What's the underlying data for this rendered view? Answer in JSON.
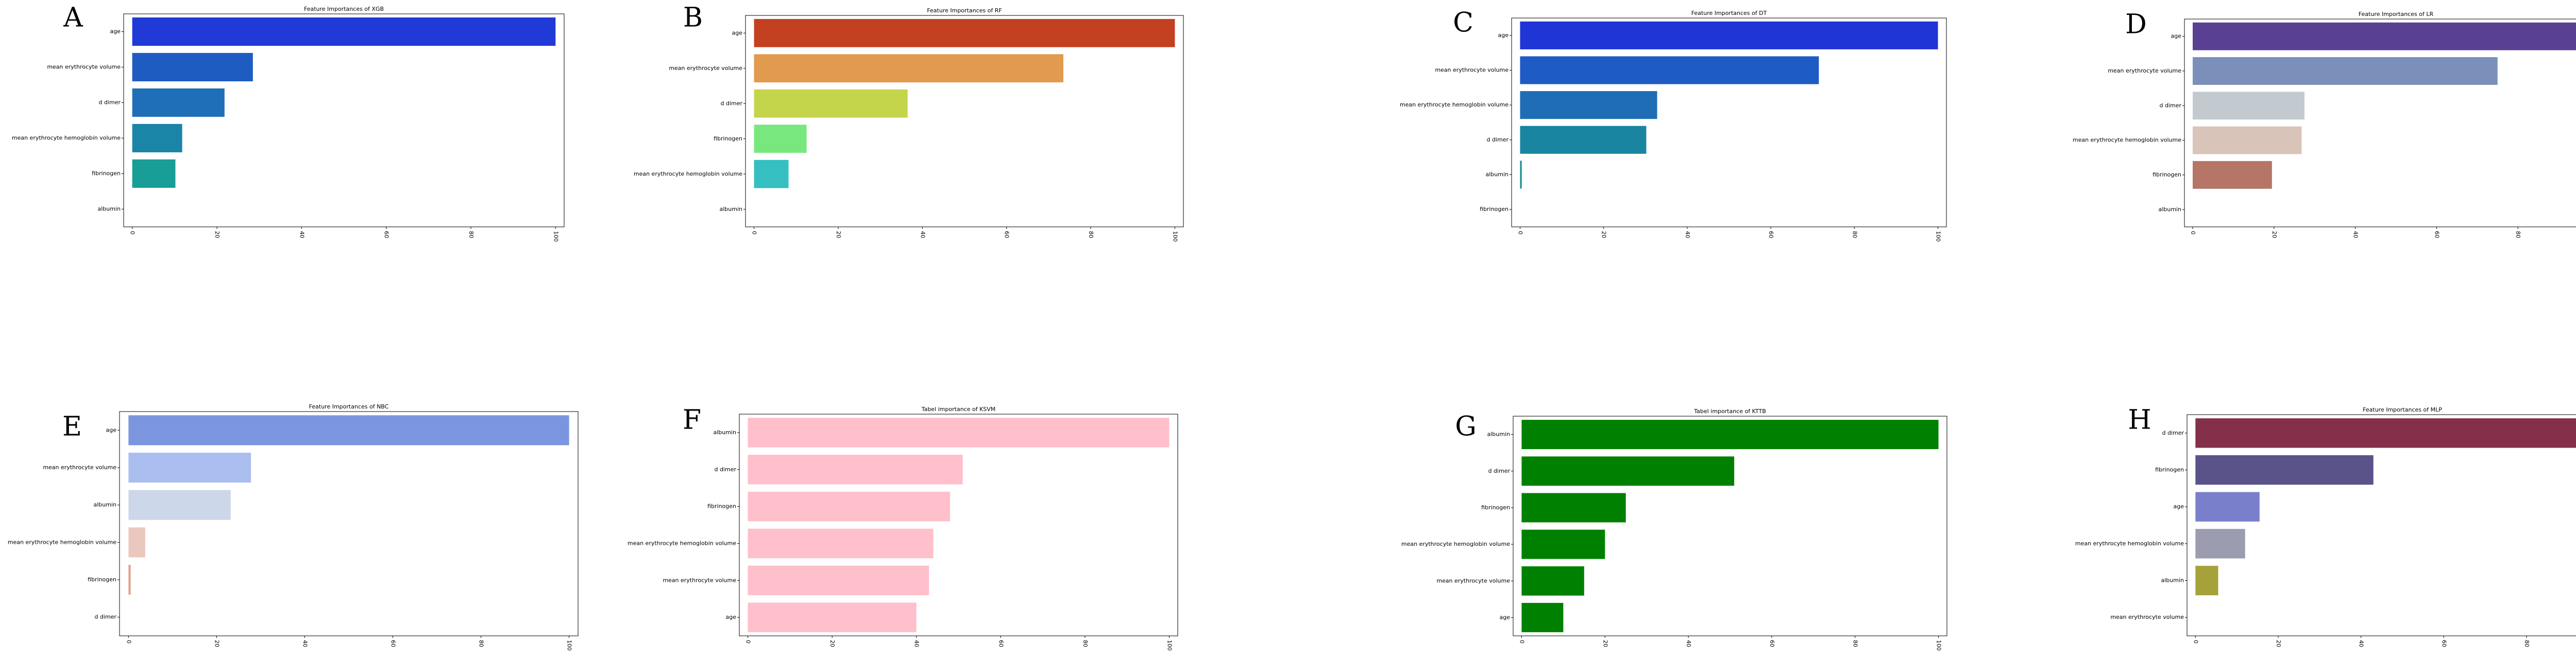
{
  "chart_data": [
    {
      "panel_label": "A",
      "type": "bar",
      "orientation": "horizontal",
      "title": "Feature Importances of XGB",
      "categories": [
        "age",
        "mean erythrocyte volume",
        "d dimer",
        "mean erythrocyte hemoglobin volume",
        "fibrinogen",
        "albumin"
      ],
      "values": [
        100,
        28.5,
        21.8,
        11.8,
        10.2,
        0
      ],
      "colors": [
        "#1f3ad6",
        "#1f5cc2",
        "#1f6fb8",
        "#1b85a8",
        "#189e96",
        "#18a38a"
      ],
      "xlim": [
        0,
        100
      ],
      "xticks": [
        "0",
        "20",
        "40",
        "60",
        "80",
        "100"
      ]
    },
    {
      "panel_label": "B",
      "type": "bar",
      "orientation": "horizontal",
      "title": "Feature Importances of RF",
      "categories": [
        "age",
        "mean erythrocyte volume",
        "d dimer",
        "fibrinogen",
        "mean erythrocyte hemoglobin volume",
        "albumin"
      ],
      "values": [
        100,
        73.5,
        36.5,
        12.5,
        8.2,
        0
      ],
      "colors": [
        "#c34120",
        "#e29a4e",
        "#c4d44b",
        "#78e87e",
        "#36bfc1",
        "#2aa7c8"
      ],
      "xlim": [
        0,
        100
      ],
      "xticks": [
        "0",
        "20",
        "40",
        "60",
        "80",
        "100"
      ]
    },
    {
      "panel_label": "C",
      "type": "bar",
      "orientation": "horizontal",
      "title": "Feature Importances of DT",
      "categories": [
        "age",
        "mean erythrocyte volume",
        "mean erythrocyte hemoglobin volume",
        "d dimer",
        "albumin",
        "fibrinogen"
      ],
      "values": [
        100,
        71.5,
        32.8,
        30.2,
        0.4,
        0
      ],
      "colors": [
        "#1f35d6",
        "#1f5bc4",
        "#1f6db5",
        "#1a85a0",
        "#188f90",
        "#189a8a"
      ],
      "xlim": [
        0,
        100
      ],
      "xticks": [
        "0",
        "20",
        "40",
        "60",
        "80",
        "100"
      ]
    },
    {
      "panel_label": "D",
      "type": "bar",
      "orientation": "horizontal",
      "title": "Feature Importances of LR",
      "categories": [
        "age",
        "mean erythrocyte volume",
        "d dimer",
        "mean erythrocyte hemoglobin volume",
        "fibrinogen",
        "albumin"
      ],
      "values": [
        100,
        75,
        27.5,
        26.8,
        19.5,
        0
      ],
      "colors": [
        "#5a4092",
        "#7b8fbb",
        "#c2cad0",
        "#d9c4ba",
        "#b57567",
        "#a8584c"
      ],
      "xlim": [
        0,
        100
      ],
      "xticks": [
        "0",
        "20",
        "40",
        "60",
        "80",
        "100"
      ]
    },
    {
      "panel_label": "E",
      "type": "bar",
      "orientation": "horizontal",
      "title": "Feature Importances of NBC",
      "categories": [
        "age",
        "mean erythrocyte volume",
        "albumin",
        "mean erythrocyte hemoglobin volume",
        "fibrinogen",
        "d dimer"
      ],
      "values": [
        100,
        27.8,
        23.2,
        3.8,
        0.5,
        0
      ],
      "colors": [
        "#7b96df",
        "#aabef0",
        "#cdd7ea",
        "#ebc8bd",
        "#e2a48f",
        "#d9897a"
      ],
      "xlim": [
        0,
        100
      ],
      "xticks": [
        "0",
        "20",
        "40",
        "60",
        "80",
        "100"
      ]
    },
    {
      "panel_label": "F",
      "type": "bar",
      "orientation": "horizontal",
      "title": "Tabel importance of KSVM",
      "categories": [
        "albumin",
        "d dimer",
        "fibrinogen",
        "mean erythrocyte hemoglobin volume",
        "mean erythrocyte volume",
        "age"
      ],
      "values": [
        100,
        51,
        48,
        44,
        43,
        40
      ],
      "colors": [
        "#ffbfcb",
        "#ffbfcb",
        "#ffbfcb",
        "#ffbfcb",
        "#ffbfcb",
        "#ffbfcb"
      ],
      "xlim": [
        0,
        100
      ],
      "xticks": [
        "0",
        "20",
        "40",
        "60",
        "80",
        "100"
      ]
    },
    {
      "panel_label": "G",
      "type": "bar",
      "orientation": "horizontal",
      "title": "Tabel importance of KTTB",
      "categories": [
        "albumin",
        "d dimer",
        "fibrinogen",
        "mean erythrocyte hemoglobin volume",
        "mean erythrocyte volume",
        "age"
      ],
      "values": [
        100,
        51,
        25,
        20,
        15,
        10
      ],
      "colors": [
        "#008000",
        "#008000",
        "#008000",
        "#008000",
        "#008000",
        "#008000"
      ],
      "xlim": [
        0,
        100
      ],
      "xticks": [
        "0",
        "20",
        "40",
        "60",
        "80",
        "100"
      ]
    },
    {
      "panel_label": "H",
      "type": "bar",
      "orientation": "horizontal",
      "title": "Feature Importances of MLP",
      "categories": [
        "d dimer",
        "fibrinogen",
        "age",
        "mean erythrocyte hemoglobin volume",
        "albumin",
        "mean erythrocyte volume"
      ],
      "values": [
        100,
        43,
        15.5,
        12,
        5.5,
        0
      ],
      "colors": [
        "#85304a",
        "#5a538a",
        "#7a7fcc",
        "#9b9cb0",
        "#a5a23a",
        "#c8c060"
      ],
      "xlim": [
        0,
        100
      ],
      "xticks": [
        "0",
        "20",
        "40",
        "60",
        "80",
        "100"
      ]
    }
  ]
}
